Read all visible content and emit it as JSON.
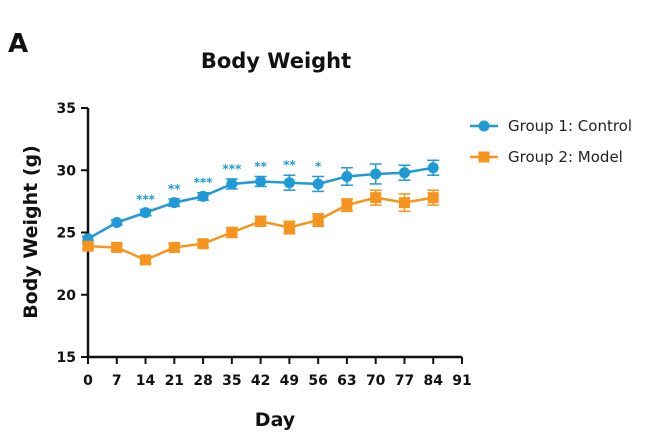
{
  "panel_label": "A",
  "chart_data": {
    "type": "line",
    "title": "Body Weight",
    "xlabel": "Day",
    "ylabel": "Body Weight (g)",
    "xlim": [
      0,
      91
    ],
    "ylim": [
      15,
      35
    ],
    "xticks": [
      0,
      7,
      14,
      21,
      28,
      35,
      42,
      49,
      56,
      63,
      70,
      77,
      84,
      91
    ],
    "yticks": [
      15,
      20,
      25,
      30,
      35
    ],
    "grid": false,
    "legend_position": "top-right",
    "series": [
      {
        "name": "Group 1: Control",
        "color": "#1f9ad6",
        "marker": "circle",
        "x": [
          0,
          7,
          14,
          21,
          28,
          35,
          42,
          49,
          56,
          63,
          70,
          77,
          84
        ],
        "y": [
          24.5,
          25.8,
          26.6,
          27.4,
          27.9,
          28.9,
          29.1,
          29.0,
          28.9,
          29.5,
          29.7,
          29.8,
          30.2
        ],
        "error": [
          0.2,
          0.2,
          0.25,
          0.3,
          0.3,
          0.4,
          0.4,
          0.6,
          0.6,
          0.7,
          0.8,
          0.6,
          0.6
        ]
      },
      {
        "name": "Group 2: Model",
        "color": "#f7941d",
        "marker": "square",
        "x": [
          0,
          7,
          14,
          21,
          28,
          35,
          42,
          49,
          56,
          63,
          70,
          77,
          84
        ],
        "y": [
          23.9,
          23.8,
          22.8,
          23.8,
          24.1,
          25.0,
          25.9,
          25.4,
          26.0,
          27.2,
          27.8,
          27.4,
          27.8
        ],
        "error": [
          0.2,
          0.3,
          0.3,
          0.3,
          0.3,
          0.4,
          0.4,
          0.5,
          0.5,
          0.5,
          0.6,
          0.7,
          0.6
        ]
      }
    ],
    "annotations": [
      {
        "x": 14,
        "text": "***"
      },
      {
        "x": 21,
        "text": "**"
      },
      {
        "x": 28,
        "text": "***"
      },
      {
        "x": 35,
        "text": "***"
      },
      {
        "x": 42,
        "text": "**"
      },
      {
        "x": 49,
        "text": "**"
      },
      {
        "x": 56,
        "text": "*"
      }
    ]
  }
}
